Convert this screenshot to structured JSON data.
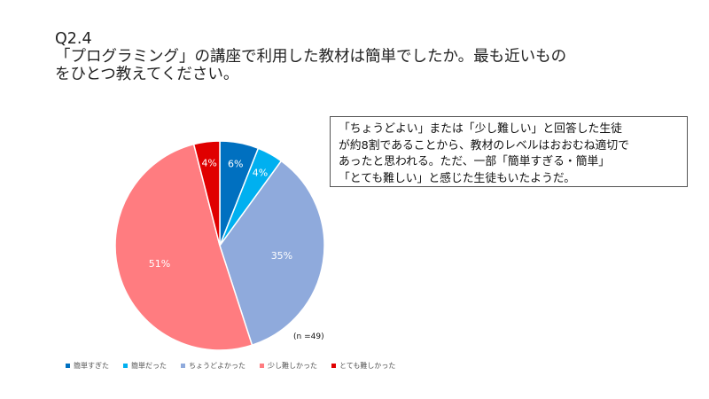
{
  "question": {
    "number": "Q2.4",
    "line1": "「プログラミング」の講座で利用した教材は簡単でしたか。最も近いもの",
    "line2": "をひとつ教えてください。"
  },
  "note": {
    "line1": "「ちょうどよい」または「少し難しい」と回答した生徒",
    "line2": "が約8割であることから、教材のレベルはおおむね適切で",
    "line3": "あったと思われる。ただ、一部「簡単すぎる・簡単」",
    "line4": "「とても難しい」と感じた生徒もいたようだ。"
  },
  "chart_data": {
    "type": "pie",
    "sample_size_label": "(n =49)",
    "slices": [
      {
        "label": "簡単すぎた",
        "value": 6,
        "display": "6%",
        "color": "#0070C0"
      },
      {
        "label": "簡単だった",
        "value": 4,
        "display": "4%",
        "color": "#00B0F0"
      },
      {
        "label": "ちょうどよかった",
        "value": 35,
        "display": "35%",
        "color": "#8FAADC"
      },
      {
        "label": "少し難しかった",
        "value": 51,
        "display": "51%",
        "color": "#FF7C80"
      },
      {
        "label": "とても難しかった",
        "value": 4,
        "display": "4%",
        "color": "#E00000"
      }
    ],
    "legend_placement": "bottom"
  }
}
